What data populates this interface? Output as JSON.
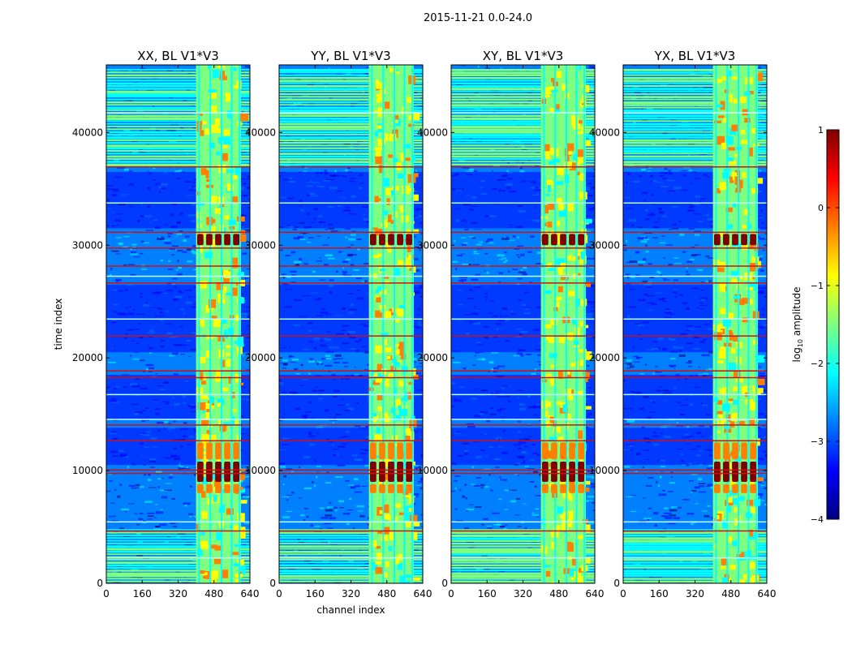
{
  "suptitle": "2015-11-21 0.0-24.0",
  "colors": {
    "jet": [
      "#00007f",
      "#0000ff",
      "#007fff",
      "#00ffff",
      "#7fff7f",
      "#ffff00",
      "#ff7f00",
      "#ff0000",
      "#7f0000"
    ],
    "band_red": "#d01010",
    "band_green": "#8cff6e"
  },
  "chart_data": [
    {
      "type": "heatmap",
      "title": "XX, BL V1*V3",
      "xlabel": "",
      "ylabel": "time index",
      "xlim": [
        0,
        640
      ],
      "ylim": [
        0,
        46000
      ],
      "xticks": [
        "0",
        "160",
        "320",
        "480",
        "640"
      ],
      "yticks": [
        "0",
        "10000",
        "20000",
        "30000",
        "40000"
      ]
    },
    {
      "type": "heatmap",
      "title": "YY, BL V1*V3",
      "xlabel": "channel index",
      "ylabel": "",
      "xlim": [
        0,
        640
      ],
      "ylim": [
        0,
        46000
      ],
      "xticks": [
        "0",
        "160",
        "320",
        "480",
        "640"
      ],
      "yticks": [
        "0",
        "10000",
        "20000",
        "30000",
        "40000"
      ]
    },
    {
      "type": "heatmap",
      "title": "XY, BL V1*V3",
      "xlabel": "",
      "ylabel": "",
      "xlim": [
        0,
        640
      ],
      "ylim": [
        0,
        46000
      ],
      "xticks": [
        "0",
        "160",
        "320",
        "480",
        "640"
      ],
      "yticks": [
        "0",
        "10000",
        "20000",
        "30000",
        "40000"
      ]
    },
    {
      "type": "heatmap",
      "title": "YX, BL V1*V3",
      "xlabel": "",
      "ylabel": "",
      "xlim": [
        0,
        640
      ],
      "ylim": [
        0,
        46000
      ],
      "xticks": [
        "0",
        "160",
        "320",
        "480",
        "640"
      ],
      "yticks": [
        "0",
        "10000",
        "20000",
        "30000",
        "40000"
      ]
    }
  ],
  "colorbar": {
    "label": "log",
    "label_sub": "10",
    "label_rest": " amplitude",
    "range": [
      -4,
      1
    ],
    "ticks": [
      "1",
      "0",
      "−1",
      "−2",
      "−3",
      "−4"
    ]
  }
}
